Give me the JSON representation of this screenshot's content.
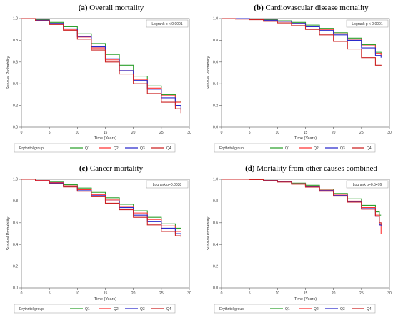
{
  "chart_data": [
    {
      "type": "line",
      "panel_label": "(a)",
      "title": "Overall mortality",
      "xlabel": "Time (Years)",
      "ylabel": "Survival Probability",
      "xlim": [
        0,
        30
      ],
      "ylim": [
        0,
        1
      ],
      "x_ticks": [
        0,
        5,
        10,
        15,
        20,
        25,
        30
      ],
      "y_ticks": [
        0.0,
        0.2,
        0.4,
        0.6,
        0.8,
        1.0
      ],
      "x_tick_labels": [
        "0",
        "5",
        "10",
        "15",
        "20",
        "25",
        "30"
      ],
      "y_tick_labels": [
        "0.0",
        "0.2",
        "0.4",
        "0.6",
        "0.8",
        "1.0"
      ],
      "grid": false,
      "annotation": "Logrank p < 0.0001",
      "legend_title": "Erythritol group",
      "legend_position": "bottom",
      "x": [
        0,
        2.5,
        5,
        7.5,
        10,
        12.5,
        15,
        17.5,
        20,
        22.5,
        25,
        27.5,
        28.5
      ],
      "series": [
        {
          "name": "Q1",
          "color": "#2ea02e",
          "values": [
            1.0,
            0.99,
            0.965,
            0.925,
            0.86,
            0.77,
            0.67,
            0.57,
            0.47,
            0.38,
            0.3,
            0.24,
            0.23
          ]
        },
        {
          "name": "Q2",
          "color": "#ff3333",
          "values": [
            1.0,
            0.985,
            0.955,
            0.9,
            0.83,
            0.73,
            0.62,
            0.52,
            0.44,
            0.36,
            0.29,
            0.23,
            0.23
          ]
        },
        {
          "name": "Q3",
          "color": "#2a2acc",
          "values": [
            1.0,
            0.985,
            0.955,
            0.905,
            0.835,
            0.74,
            0.63,
            0.52,
            0.43,
            0.35,
            0.27,
            0.2,
            0.16
          ]
        },
        {
          "name": "Q4",
          "color": "#cc2222",
          "values": [
            1.0,
            0.98,
            0.945,
            0.89,
            0.81,
            0.71,
            0.6,
            0.49,
            0.4,
            0.31,
            0.23,
            0.17,
            0.13
          ]
        }
      ]
    },
    {
      "type": "line",
      "panel_label": "(b)",
      "title": "Cardiovascular disease mortality",
      "xlabel": "Time (Years)",
      "ylabel": "Survival Probability",
      "xlim": [
        0,
        30
      ],
      "ylim": [
        0,
        1
      ],
      "x_ticks": [
        0,
        5,
        10,
        15,
        20,
        25,
        30
      ],
      "y_ticks": [
        0.0,
        0.2,
        0.4,
        0.6,
        0.8,
        1.0
      ],
      "x_tick_labels": [
        "0",
        "5",
        "10",
        "15",
        "20",
        "25",
        "30"
      ],
      "y_tick_labels": [
        "0.0",
        "0.2",
        "0.4",
        "0.6",
        "0.8",
        "1.0"
      ],
      "grid": false,
      "annotation": "Logrank p < 0.0001",
      "legend_title": "Erythritol group",
      "legend_position": "bottom",
      "x": [
        0,
        2.5,
        5,
        7.5,
        10,
        12.5,
        15,
        17.5,
        20,
        22.5,
        25,
        27.5,
        28.5
      ],
      "series": [
        {
          "name": "Q1",
          "color": "#2ea02e",
          "values": [
            1.0,
            1.0,
            0.995,
            0.99,
            0.98,
            0.965,
            0.94,
            0.91,
            0.87,
            0.82,
            0.76,
            0.69,
            0.67
          ]
        },
        {
          "name": "Q2",
          "color": "#ff3333",
          "values": [
            1.0,
            1.0,
            0.995,
            0.985,
            0.975,
            0.955,
            0.93,
            0.9,
            0.86,
            0.81,
            0.75,
            0.68,
            0.65
          ]
        },
        {
          "name": "Q3",
          "color": "#2a2acc",
          "values": [
            1.0,
            1.0,
            0.995,
            0.985,
            0.975,
            0.955,
            0.925,
            0.89,
            0.85,
            0.8,
            0.73,
            0.66,
            0.64
          ]
        },
        {
          "name": "Q4",
          "color": "#cc2222",
          "values": [
            1.0,
            0.995,
            0.99,
            0.975,
            0.96,
            0.935,
            0.9,
            0.85,
            0.79,
            0.72,
            0.64,
            0.57,
            0.56
          ]
        }
      ]
    },
    {
      "type": "line",
      "panel_label": "(c)",
      "title": "Cancer mortality",
      "xlabel": "Time (Years)",
      "ylabel": "Survival Probability",
      "xlim": [
        0,
        30
      ],
      "ylim": [
        0,
        1
      ],
      "x_ticks": [
        0,
        5,
        10,
        15,
        20,
        25,
        30
      ],
      "y_ticks": [
        0.0,
        0.2,
        0.4,
        0.6,
        0.8,
        1.0
      ],
      "x_tick_labels": [
        "0",
        "5",
        "10",
        "15",
        "20",
        "25",
        "30"
      ],
      "y_tick_labels": [
        "0.0",
        "0.2",
        "0.4",
        "0.6",
        "0.8",
        "1.0"
      ],
      "grid": false,
      "annotation": "Logrank p=0.0038",
      "legend_title": "Erythritol group",
      "legend_position": "bottom",
      "x": [
        0,
        2.5,
        5,
        7.5,
        10,
        12.5,
        15,
        17.5,
        20,
        22.5,
        25,
        27.5,
        28.5
      ],
      "series": [
        {
          "name": "Q1",
          "color": "#2ea02e",
          "values": [
            1.0,
            0.99,
            0.975,
            0.95,
            0.92,
            0.88,
            0.83,
            0.77,
            0.71,
            0.65,
            0.59,
            0.55,
            0.54
          ]
        },
        {
          "name": "Q2",
          "color": "#ff3333",
          "values": [
            1.0,
            0.99,
            0.97,
            0.94,
            0.905,
            0.86,
            0.81,
            0.75,
            0.69,
            0.63,
            0.57,
            0.52,
            0.52
          ]
        },
        {
          "name": "Q3",
          "color": "#2a2acc",
          "values": [
            1.0,
            0.985,
            0.965,
            0.935,
            0.895,
            0.85,
            0.8,
            0.74,
            0.67,
            0.61,
            0.55,
            0.5,
            0.49
          ]
        },
        {
          "name": "Q4",
          "color": "#cc2222",
          "values": [
            1.0,
            0.985,
            0.96,
            0.93,
            0.89,
            0.84,
            0.78,
            0.72,
            0.65,
            0.58,
            0.52,
            0.48,
            0.47
          ]
        }
      ]
    },
    {
      "type": "line",
      "panel_label": "(d)",
      "title": "Mortality from other causes combined",
      "xlabel": "Time (Years)",
      "ylabel": "Survival Probability",
      "xlim": [
        0,
        30
      ],
      "ylim": [
        0,
        1
      ],
      "x_ticks": [
        0,
        5,
        10,
        15,
        20,
        25,
        30
      ],
      "y_ticks": [
        0.0,
        0.2,
        0.4,
        0.6,
        0.8,
        1.0
      ],
      "x_tick_labels": [
        "0",
        "5",
        "10",
        "15",
        "20",
        "25",
        "30"
      ],
      "y_tick_labels": [
        "0.0",
        "0.2",
        "0.4",
        "0.6",
        "0.8",
        "1.0"
      ],
      "grid": false,
      "annotation": "Logrank p=0.5476",
      "legend_title": "Erythritol group",
      "legend_position": "bottom",
      "x": [
        0,
        2.5,
        5,
        7.5,
        10,
        12.5,
        15,
        17.5,
        20,
        22.5,
        25,
        27.5,
        28.2,
        28.5
      ],
      "series": [
        {
          "name": "Q1",
          "color": "#2ea02e",
          "values": [
            1.0,
            1.0,
            0.998,
            0.99,
            0.98,
            0.965,
            0.945,
            0.91,
            0.87,
            0.82,
            0.76,
            0.7,
            0.67,
            0.67
          ]
        },
        {
          "name": "Q2",
          "color": "#ff3333",
          "values": [
            1.0,
            1.0,
            0.997,
            0.99,
            0.978,
            0.96,
            0.935,
            0.9,
            0.855,
            0.8,
            0.74,
            0.67,
            0.58,
            0.5
          ]
        },
        {
          "name": "Q3",
          "color": "#2a2acc",
          "values": [
            1.0,
            1.0,
            0.997,
            0.99,
            0.977,
            0.958,
            0.933,
            0.895,
            0.85,
            0.795,
            0.73,
            0.66,
            0.58,
            0.57
          ]
        },
        {
          "name": "Q4",
          "color": "#cc2222",
          "values": [
            1.0,
            1.0,
            0.997,
            0.988,
            0.975,
            0.955,
            0.928,
            0.89,
            0.845,
            0.79,
            0.725,
            0.66,
            0.6,
            0.58
          ]
        }
      ]
    }
  ]
}
